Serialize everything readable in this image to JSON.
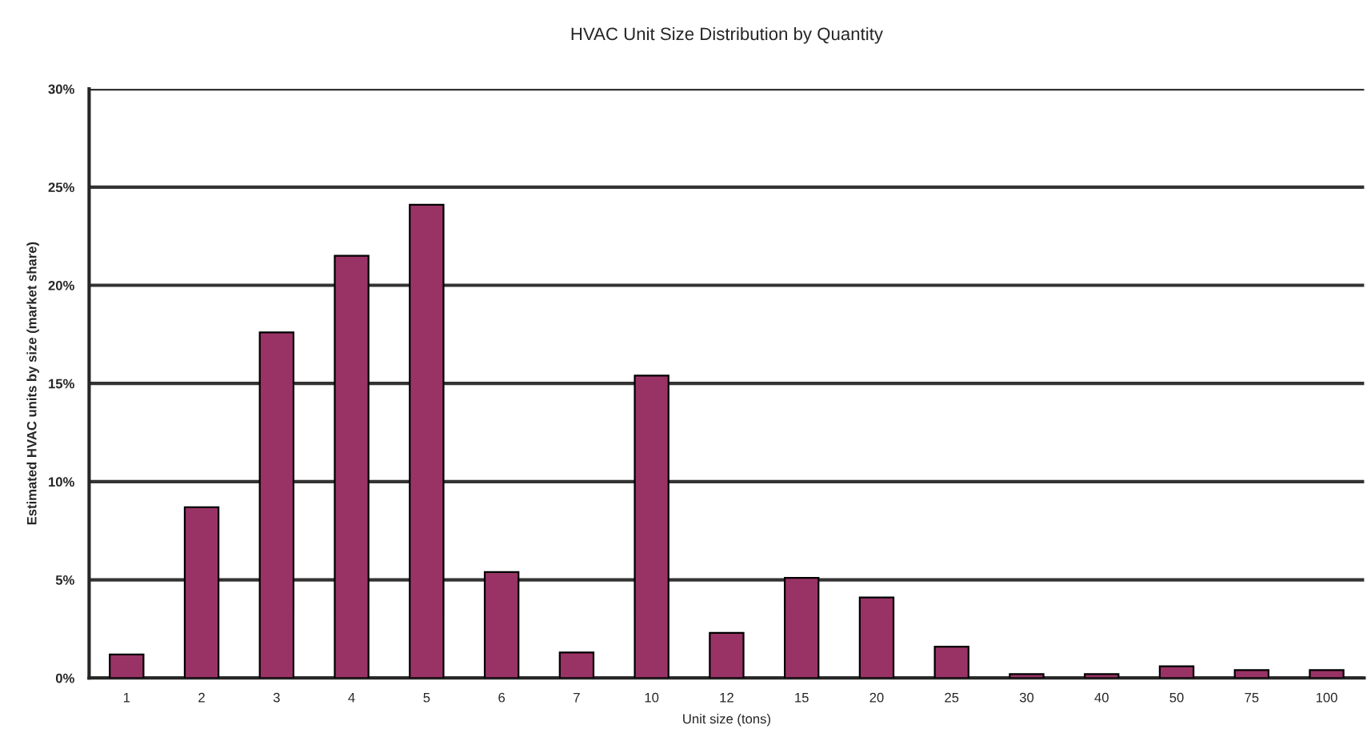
{
  "chart_data": {
    "type": "bar",
    "title": "HVAC Unit Size Distribution by Quantity",
    "xlabel": "Unit size (tons)",
    "ylabel": "Estimated HVAC units by size (market share)",
    "categories": [
      "1",
      "2",
      "3",
      "4",
      "5",
      "6",
      "7",
      "10",
      "12",
      "15",
      "20",
      "25",
      "30",
      "40",
      "50",
      "75",
      "100"
    ],
    "series": [
      {
        "color": "#993366",
        "values": [
          1.2,
          8.7,
          17.6,
          21.5,
          24.1,
          5.4,
          1.3,
          15.4,
          2.3,
          5.1,
          4.1,
          1.6,
          0.2,
          0.2,
          0.6,
          0.4,
          0.4
        ]
      }
    ],
    "ylim": [
      0,
      30
    ],
    "yticks": [
      {
        "value": 0,
        "label": "0%"
      },
      {
        "value": 5,
        "label": "5%"
      },
      {
        "value": 10,
        "label": "10%"
      },
      {
        "value": 15,
        "label": "15%"
      },
      {
        "value": 20,
        "label": "20%"
      },
      {
        "value": 25,
        "label": "25%"
      },
      {
        "value": 30,
        "label": "30%"
      }
    ],
    "grid": "y",
    "legend": false
  }
}
